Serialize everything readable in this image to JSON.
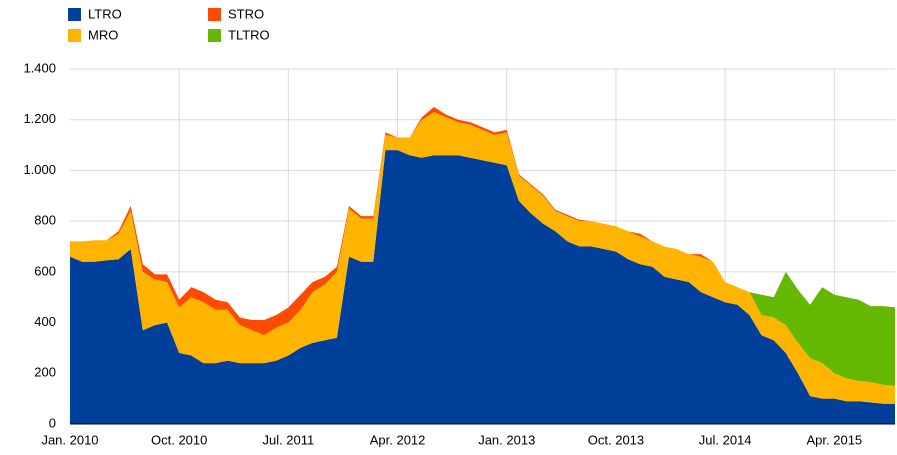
{
  "chart_data": {
    "type": "stacked_area",
    "x": [
      "2010-01",
      "2010-02",
      "2010-03",
      "2010-04",
      "2010-05",
      "2010-06",
      "2010-07",
      "2010-08",
      "2010-09",
      "2010-10",
      "2010-11",
      "2010-12",
      "2011-01",
      "2011-02",
      "2011-03",
      "2011-04",
      "2011-05",
      "2011-06",
      "2011-07",
      "2011-08",
      "2011-09",
      "2011-10",
      "2011-11",
      "2011-12",
      "2012-01",
      "2012-02",
      "2012-03",
      "2012-04",
      "2012-05",
      "2012-06",
      "2012-07",
      "2012-08",
      "2012-09",
      "2012-10",
      "2012-11",
      "2012-12",
      "2013-01",
      "2013-02",
      "2013-03",
      "2013-04",
      "2013-05",
      "2013-06",
      "2013-07",
      "2013-08",
      "2013-09",
      "2013-10",
      "2013-11",
      "2013-12",
      "2014-01",
      "2014-02",
      "2014-03",
      "2014-04",
      "2014-05",
      "2014-06",
      "2014-07",
      "2014-08",
      "2014-09",
      "2014-10",
      "2014-11",
      "2014-12",
      "2015-01",
      "2015-02",
      "2015-03",
      "2015-04",
      "2015-05",
      "2015-06",
      "2015-07",
      "2015-08",
      "2015-09"
    ],
    "series": [
      {
        "name": "LTRO",
        "color": "#003f9a",
        "values": [
          660,
          640,
          640,
          645,
          650,
          690,
          370,
          390,
          400,
          280,
          270,
          240,
          240,
          250,
          240,
          240,
          240,
          250,
          270,
          300,
          320,
          330,
          340,
          660,
          640,
          640,
          1080,
          1080,
          1060,
          1050,
          1060,
          1060,
          1060,
          1050,
          1040,
          1030,
          1020,
          880,
          830,
          790,
          760,
          720,
          700,
          700,
          690,
          680,
          650,
          630,
          620,
          580,
          570,
          560,
          520,
          500,
          480,
          470,
          430,
          350,
          330,
          280,
          200,
          110,
          100,
          100,
          90,
          90,
          85,
          80,
          80
        ]
      },
      {
        "name": "MRO",
        "color": "#ffb400",
        "values": [
          60,
          80,
          85,
          80,
          100,
          150,
          230,
          180,
          160,
          180,
          230,
          240,
          210,
          200,
          150,
          130,
          110,
          130,
          130,
          150,
          200,
          220,
          260,
          190,
          170,
          170,
          60,
          50,
          70,
          150,
          170,
          150,
          130,
          130,
          120,
          110,
          130,
          100,
          110,
          110,
          80,
          100,
          100,
          100,
          100,
          100,
          110,
          110,
          100,
          120,
          120,
          110,
          140,
          140,
          80,
          70,
          90,
          80,
          90,
          110,
          120,
          150,
          140,
          100,
          90,
          80,
          80,
          75,
          70
        ]
      },
      {
        "name": "STRO",
        "color": "#ff4b00",
        "values": [
          0,
          0,
          0,
          0,
          10,
          20,
          30,
          20,
          30,
          30,
          40,
          40,
          40,
          30,
          30,
          40,
          60,
          50,
          60,
          60,
          40,
          30,
          20,
          10,
          10,
          10,
          10,
          0,
          0,
          10,
          20,
          10,
          10,
          10,
          10,
          10,
          10,
          5,
          5,
          5,
          5,
          5,
          5,
          0,
          0,
          0,
          0,
          10,
          0,
          0,
          0,
          0,
          10,
          0,
          0,
          0,
          0,
          0,
          0,
          0,
          0,
          0,
          0,
          0,
          0,
          0,
          0,
          0,
          0
        ]
      },
      {
        "name": "TLTRO",
        "color": "#65b800",
        "values": [
          0,
          0,
          0,
          0,
          0,
          0,
          0,
          0,
          0,
          0,
          0,
          0,
          0,
          0,
          0,
          0,
          0,
          0,
          0,
          0,
          0,
          0,
          0,
          0,
          0,
          0,
          0,
          0,
          0,
          0,
          0,
          0,
          0,
          0,
          0,
          0,
          0,
          0,
          0,
          0,
          0,
          0,
          0,
          0,
          0,
          0,
          0,
          0,
          0,
          0,
          0,
          0,
          0,
          0,
          0,
          0,
          0,
          80,
          80,
          210,
          210,
          210,
          300,
          310,
          320,
          320,
          300,
          310,
          310
        ]
      }
    ],
    "xlim": [
      "2010-01",
      "2015-09"
    ],
    "xticks": [
      {
        "value": "2010-01",
        "label": "Jan. 2010"
      },
      {
        "value": "2010-10",
        "label": "Oct. 2010"
      },
      {
        "value": "2011-07",
        "label": "Jul. 2011"
      },
      {
        "value": "2012-04",
        "label": "Apr. 2012"
      },
      {
        "value": "2013-01",
        "label": "Jan. 2013"
      },
      {
        "value": "2013-10",
        "label": "Oct. 2013"
      },
      {
        "value": "2014-07",
        "label": "Jul. 2014"
      },
      {
        "value": "2015-04",
        "label": "Apr. 2015"
      }
    ],
    "ylim": [
      0,
      1400
    ],
    "yticks": [
      0,
      200,
      400,
      600,
      800,
      {
        "value": 1000,
        "label": "1.000"
      },
      {
        "value": 1200,
        "label": "1.200"
      },
      {
        "value": 1400,
        "label": "1.400"
      }
    ],
    "grid": true,
    "legend": "top-left"
  }
}
